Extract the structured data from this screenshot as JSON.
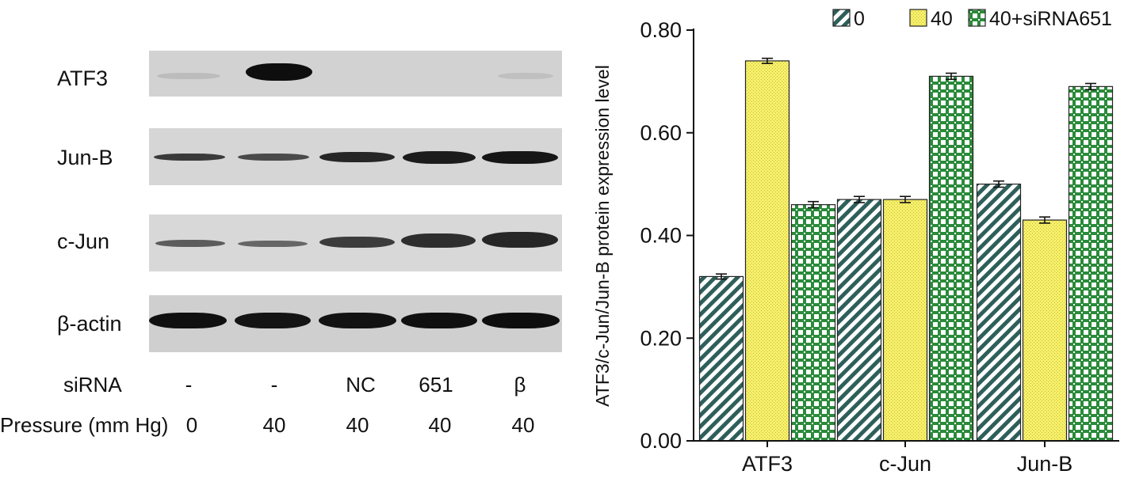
{
  "blot": {
    "proteins": [
      "ATF3",
      "Jun-B",
      "c-Jun",
      "β-actin"
    ],
    "sirna_label": "siRNA",
    "sirna_values": [
      "-",
      "-",
      "NC",
      "651",
      "β"
    ],
    "pressure_label": "Pressure (mm Hg)",
    "pressure_values": [
      "0",
      "40",
      "40",
      "40",
      "40"
    ]
  },
  "chart_data": {
    "type": "bar",
    "categories": [
      "ATF3",
      "c-Jun",
      "Jun-B"
    ],
    "series": [
      {
        "name": "0",
        "values": [
          0.32,
          0.47,
          0.5
        ],
        "errors": [
          0.005,
          0.006,
          0.006
        ],
        "color": "#2e5f5a",
        "pattern": "diagonal-hatch"
      },
      {
        "name": "40",
        "values": [
          0.74,
          0.47,
          0.43
        ],
        "errors": [
          0.005,
          0.006,
          0.006
        ],
        "color": "#f6f06a",
        "pattern": "dots"
      },
      {
        "name": "40+siRNA651",
        "values": [
          0.46,
          0.71,
          0.69
        ],
        "errors": [
          0.006,
          0.006,
          0.006
        ],
        "color": "#2a8a3a",
        "pattern": "cross-hatch"
      }
    ],
    "ylabel": "ATF3/c-Jun/Jun-B protein expression level",
    "ylim": [
      0,
      0.8
    ],
    "yticks": [
      "0.00",
      "0.20",
      "0.40",
      "0.60",
      "0.80"
    ],
    "grid": false,
    "legend_position": "top"
  }
}
